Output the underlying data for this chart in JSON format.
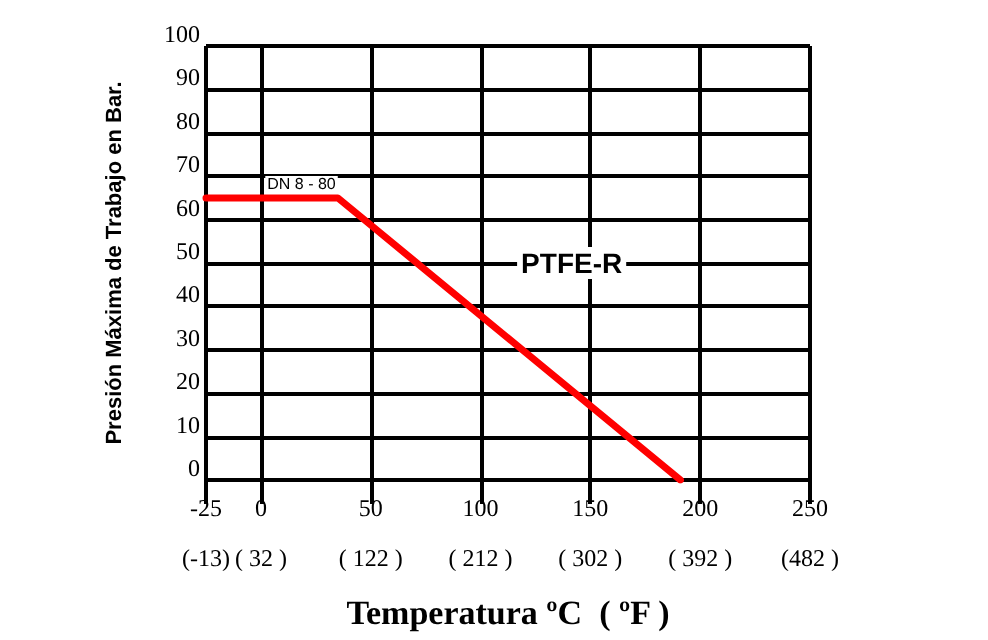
{
  "chart_data": {
    "type": "line",
    "xlabel": "Temperatura ºC  ( ºF )",
    "ylabel": "Presión Máxima de Trabajo en Bar.",
    "x": [
      -25,
      35,
      191
    ],
    "series": [
      {
        "name": "PTFE-R",
        "color": "#ff0000",
        "values": [
          65,
          65,
          0
        ]
      }
    ],
    "xlim": [
      -25,
      250
    ],
    "xticks": [
      -25,
      0,
      50,
      100,
      150,
      200,
      250
    ],
    "x2lim": [
      -13,
      482
    ],
    "x2ticks": [
      {
        "value": -13,
        "label": "(-13)"
      },
      {
        "value": 32,
        "label": "( 32 )"
      },
      {
        "value": 122,
        "label": "( 122 )"
      },
      {
        "value": 212,
        "label": "( 212 )"
      },
      {
        "value": 302,
        "label": "( 302 )"
      },
      {
        "value": 392,
        "label": "( 392 )"
      },
      {
        "value": 482,
        "label": "(482 )"
      }
    ],
    "ylim": [
      0,
      100
    ],
    "yticks": [
      0,
      10,
      20,
      30,
      40,
      50,
      60,
      70,
      80,
      90,
      100
    ],
    "grid": true,
    "marker": "none",
    "line_style": "solid",
    "annotations": [
      {
        "text": "DN 8 - 80",
        "x": 2,
        "y": 65
      }
    ]
  }
}
